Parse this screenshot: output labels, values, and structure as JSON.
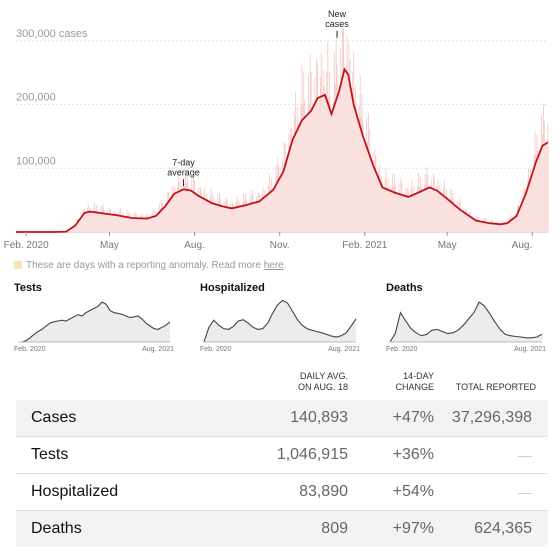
{
  "chart_data": {
    "type": "bar",
    "title": "",
    "ylabel": "cases",
    "y_ticks": [
      100000,
      200000,
      300000
    ],
    "y_tick_labels": [
      "100,000",
      "200,000",
      "300,000 cases"
    ],
    "ylim": [
      0,
      320000
    ],
    "x_ticks": [
      {
        "label": "Feb. 2020",
        "date": "2020-02-01"
      },
      {
        "label": "May",
        "date": "2020-05-01"
      },
      {
        "label": "Aug.",
        "date": "2020-08-01"
      },
      {
        "label": "Nov.",
        "date": "2020-11-01"
      },
      {
        "label": "Feb. 2021",
        "date": "2021-02-01"
      },
      {
        "label": "May",
        "date": "2021-05-01"
      },
      {
        "label": "Aug.",
        "date": "2021-08-01"
      }
    ],
    "xlim": [
      "2020-01-21",
      "2021-08-18"
    ],
    "series": [
      {
        "name": "7-day average",
        "color": "#c0141b",
        "points": [
          [
            "2020-01-21",
            0
          ],
          [
            "2020-03-01",
            0
          ],
          [
            "2020-03-15",
            500
          ],
          [
            "2020-03-25",
            10000
          ],
          [
            "2020-04-04",
            30000
          ],
          [
            "2020-04-10",
            32000
          ],
          [
            "2020-04-25",
            29000
          ],
          [
            "2020-05-10",
            26000
          ],
          [
            "2020-05-25",
            22000
          ],
          [
            "2020-06-10",
            21000
          ],
          [
            "2020-06-20",
            25000
          ],
          [
            "2020-06-30",
            40000
          ],
          [
            "2020-07-10",
            60000
          ],
          [
            "2020-07-20",
            67000
          ],
          [
            "2020-07-28",
            65000
          ],
          [
            "2020-08-05",
            57000
          ],
          [
            "2020-08-20",
            45000
          ],
          [
            "2020-09-01",
            40000
          ],
          [
            "2020-09-10",
            37000
          ],
          [
            "2020-09-25",
            42000
          ],
          [
            "2020-10-10",
            48000
          ],
          [
            "2020-10-25",
            66000
          ],
          [
            "2020-11-05",
            95000
          ],
          [
            "2020-11-15",
            145000
          ],
          [
            "2020-11-25",
            175000
          ],
          [
            "2020-12-05",
            190000
          ],
          [
            "2020-12-12",
            210000
          ],
          [
            "2020-12-20",
            215000
          ],
          [
            "2020-12-27",
            185000
          ],
          [
            "2021-01-04",
            220000
          ],
          [
            "2021-01-10",
            255000
          ],
          [
            "2021-01-14",
            247000
          ],
          [
            "2021-01-20",
            200000
          ],
          [
            "2021-01-30",
            150000
          ],
          [
            "2021-02-10",
            105000
          ],
          [
            "2021-02-20",
            70000
          ],
          [
            "2021-03-05",
            62000
          ],
          [
            "2021-03-20",
            55000
          ],
          [
            "2021-03-31",
            62000
          ],
          [
            "2021-04-12",
            70000
          ],
          [
            "2021-04-20",
            65000
          ],
          [
            "2021-05-01",
            52000
          ],
          [
            "2021-05-15",
            35000
          ],
          [
            "2021-06-01",
            18000
          ],
          [
            "2021-06-15",
            14000
          ],
          [
            "2021-06-28",
            12000
          ],
          [
            "2021-07-05",
            14000
          ],
          [
            "2021-07-15",
            25000
          ],
          [
            "2021-07-25",
            60000
          ],
          [
            "2021-08-05",
            110000
          ],
          [
            "2021-08-12",
            135000
          ],
          [
            "2021-08-18",
            140893
          ]
        ]
      }
    ],
    "annotations": [
      {
        "text": [
          "7-day",
          "average"
        ],
        "date": "2020-07-20",
        "value": 67000
      },
      {
        "text": [
          "New",
          "cases"
        ],
        "date": "2021-01-02",
        "value": 300000
      }
    ]
  },
  "anomaly_note": {
    "text": "These are days with a reporting anomaly. Read more ",
    "link": "here",
    "period": ".",
    "color": "#f5e7b5"
  },
  "small_charts": [
    {
      "title": "Tests",
      "x_start": "Feb. 2020",
      "x_end": "Aug. 2021",
      "values": [
        0,
        0,
        0.03,
        0.1,
        0.18,
        0.25,
        0.3,
        0.38,
        0.45,
        0.48,
        0.5,
        0.52,
        0.5,
        0.55,
        0.6,
        0.65,
        0.62,
        0.7,
        0.75,
        0.8,
        0.85,
        0.95,
        0.9,
        0.75,
        0.7,
        0.68,
        0.66,
        0.62,
        0.58,
        0.6,
        0.62,
        0.55,
        0.45,
        0.38,
        0.32,
        0.3,
        0.35,
        0.4,
        0.48
      ]
    },
    {
      "title": "Hospitalized",
      "x_start": "Feb. 2020",
      "x_end": "Aug. 2021",
      "values": [
        0.0,
        0.35,
        0.52,
        0.4,
        0.32,
        0.3,
        0.37,
        0.5,
        0.53,
        0.45,
        0.35,
        0.3,
        0.32,
        0.45,
        0.68,
        0.88,
        0.99,
        0.93,
        0.74,
        0.54,
        0.4,
        0.32,
        0.28,
        0.25,
        0.22,
        0.18,
        0.14,
        0.12,
        0.15,
        0.22,
        0.38,
        0.55
      ]
    },
    {
      "title": "Deaths",
      "x_start": "Feb. 2020",
      "x_end": "Aug. 2021",
      "values": [
        0.0,
        0.2,
        0.7,
        0.5,
        0.32,
        0.22,
        0.15,
        0.18,
        0.28,
        0.3,
        0.25,
        0.2,
        0.22,
        0.28,
        0.4,
        0.55,
        0.7,
        0.95,
        0.86,
        0.68,
        0.48,
        0.3,
        0.18,
        0.15,
        0.13,
        0.12,
        0.1,
        0.1,
        0.12,
        0.18
      ]
    }
  ],
  "table": {
    "headers": {
      "avg": [
        "DAILY AVG.",
        "ON AUG. 18"
      ],
      "change": [
        "14-DAY",
        "CHANGE"
      ],
      "total": "TOTAL REPORTED"
    },
    "rows": [
      {
        "name": "Cases",
        "avg": "140,893",
        "change": "+47%",
        "total": "37,296,398"
      },
      {
        "name": "Tests",
        "avg": "1,046,915",
        "change": "+36%",
        "total": "—"
      },
      {
        "name": "Hospitalized",
        "avg": "83,890",
        "change": "+54%",
        "total": "—"
      },
      {
        "name": "Deaths",
        "avg": "809",
        "change": "+97%",
        "total": "624,365"
      }
    ]
  },
  "colors": {
    "avg_line": "#c0141b",
    "bars": "#f6c1c1",
    "area": "#fbe0e0",
    "small_area": "#ececec",
    "small_line": "#444444"
  }
}
